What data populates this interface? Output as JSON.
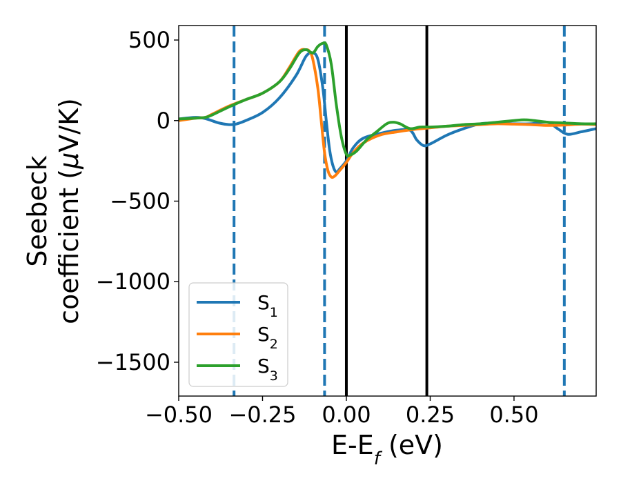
{
  "chart_data": {
    "type": "line",
    "title": "",
    "xlabel": "E-E",
    "xlabel_sub": "f",
    "xlabel_unit": " (eV)",
    "ylabel_line1": "Seebeck",
    "ylabel_line2_prefix": "coefficient  (",
    "ylabel_mu": "μ",
    "ylabel_line2_suffix": "V/K)",
    "xlim": [
      -0.5,
      0.745
    ],
    "ylim": [
      -1710,
      590
    ],
    "x_ticks": [
      -0.5,
      -0.25,
      0.0,
      0.25,
      0.5
    ],
    "x_tick_labels": [
      "−0.50",
      "−0.25",
      "0.00",
      "0.25",
      "0.50"
    ],
    "y_ticks": [
      500,
      0,
      -500,
      -1000,
      -1500
    ],
    "y_tick_labels": [
      "500",
      "0",
      "−500",
      "−1000",
      "−1500"
    ],
    "grid": false,
    "legend_position": "lower-left",
    "dashed_vlines": [
      -0.335,
      -0.065,
      0.65
    ],
    "solid_vlines": [
      0.0,
      0.24
    ],
    "series": [
      {
        "name": "S",
        "sub": "1",
        "color": "#1f77b4",
        "points": [
          [
            -0.5,
            10
          ],
          [
            -0.45,
            20
          ],
          [
            -0.42,
            12
          ],
          [
            -0.38,
            -15
          ],
          [
            -0.35,
            -25
          ],
          [
            -0.33,
            -22
          ],
          [
            -0.3,
            0
          ],
          [
            -0.25,
            50
          ],
          [
            -0.2,
            140
          ],
          [
            -0.15,
            280
          ],
          [
            -0.12,
            400
          ],
          [
            -0.1,
            420
          ],
          [
            -0.085,
            380
          ],
          [
            -0.07,
            200
          ],
          [
            -0.06,
            0
          ],
          [
            -0.05,
            -180
          ],
          [
            -0.04,
            -280
          ],
          [
            -0.03,
            -320
          ],
          [
            -0.02,
            -300
          ],
          [
            0.0,
            -250
          ],
          [
            0.02,
            -170
          ],
          [
            0.05,
            -110
          ],
          [
            0.1,
            -80
          ],
          [
            0.15,
            -60
          ],
          [
            0.19,
            -60
          ],
          [
            0.21,
            -120
          ],
          [
            0.23,
            -155
          ],
          [
            0.25,
            -145
          ],
          [
            0.3,
            -90
          ],
          [
            0.35,
            -50
          ],
          [
            0.4,
            -20
          ],
          [
            0.45,
            -15
          ],
          [
            0.5,
            -20
          ],
          [
            0.55,
            -20
          ],
          [
            0.6,
            -10
          ],
          [
            0.63,
            -50
          ],
          [
            0.66,
            -85
          ],
          [
            0.7,
            -70
          ],
          [
            0.745,
            -50
          ]
        ]
      },
      {
        "name": "S",
        "sub": "2",
        "color": "#ff7f0e",
        "points": [
          [
            -0.5,
            0
          ],
          [
            -0.45,
            15
          ],
          [
            -0.42,
            20
          ],
          [
            -0.4,
            40
          ],
          [
            -0.35,
            90
          ],
          [
            -0.3,
            130
          ],
          [
            -0.25,
            170
          ],
          [
            -0.2,
            240
          ],
          [
            -0.17,
            330
          ],
          [
            -0.14,
            430
          ],
          [
            -0.12,
            440
          ],
          [
            -0.11,
            430
          ],
          [
            -0.1,
            380
          ],
          [
            -0.085,
            200
          ],
          [
            -0.075,
            0
          ],
          [
            -0.065,
            -200
          ],
          [
            -0.055,
            -310
          ],
          [
            -0.045,
            -350
          ],
          [
            -0.035,
            -345
          ],
          [
            -0.02,
            -310
          ],
          [
            0.0,
            -260
          ],
          [
            0.02,
            -200
          ],
          [
            0.05,
            -140
          ],
          [
            0.1,
            -90
          ],
          [
            0.15,
            -70
          ],
          [
            0.2,
            -55
          ],
          [
            0.25,
            -45
          ],
          [
            0.3,
            -35
          ],
          [
            0.35,
            -30
          ],
          [
            0.4,
            -25
          ],
          [
            0.45,
            -20
          ],
          [
            0.5,
            -22
          ],
          [
            0.55,
            -25
          ],
          [
            0.6,
            -30
          ],
          [
            0.65,
            -28
          ],
          [
            0.7,
            -22
          ],
          [
            0.745,
            -25
          ]
        ]
      },
      {
        "name": "S",
        "sub": "3",
        "color": "#2ca02c",
        "points": [
          [
            -0.5,
            10
          ],
          [
            -0.45,
            15
          ],
          [
            -0.42,
            20
          ],
          [
            -0.4,
            35
          ],
          [
            -0.35,
            85
          ],
          [
            -0.3,
            130
          ],
          [
            -0.25,
            170
          ],
          [
            -0.2,
            240
          ],
          [
            -0.17,
            320
          ],
          [
            -0.14,
            420
          ],
          [
            -0.12,
            440
          ],
          [
            -0.1,
            420
          ],
          [
            -0.085,
            460
          ],
          [
            -0.07,
            480
          ],
          [
            -0.06,
            470
          ],
          [
            -0.045,
            350
          ],
          [
            -0.03,
            100
          ],
          [
            -0.015,
            -100
          ],
          [
            0.0,
            -210
          ],
          [
            0.01,
            -215
          ],
          [
            0.03,
            -190
          ],
          [
            0.06,
            -120
          ],
          [
            0.09,
            -70
          ],
          [
            0.12,
            -20
          ],
          [
            0.14,
            -10
          ],
          [
            0.16,
            -20
          ],
          [
            0.19,
            -50
          ],
          [
            0.22,
            -40
          ],
          [
            0.25,
            -40
          ],
          [
            0.3,
            -35
          ],
          [
            0.35,
            -25
          ],
          [
            0.4,
            -20
          ],
          [
            0.45,
            -10
          ],
          [
            0.5,
            0
          ],
          [
            0.53,
            5
          ],
          [
            0.56,
            0
          ],
          [
            0.6,
            -10
          ],
          [
            0.65,
            -15
          ],
          [
            0.7,
            -20
          ],
          [
            0.745,
            -20
          ]
        ]
      }
    ]
  }
}
